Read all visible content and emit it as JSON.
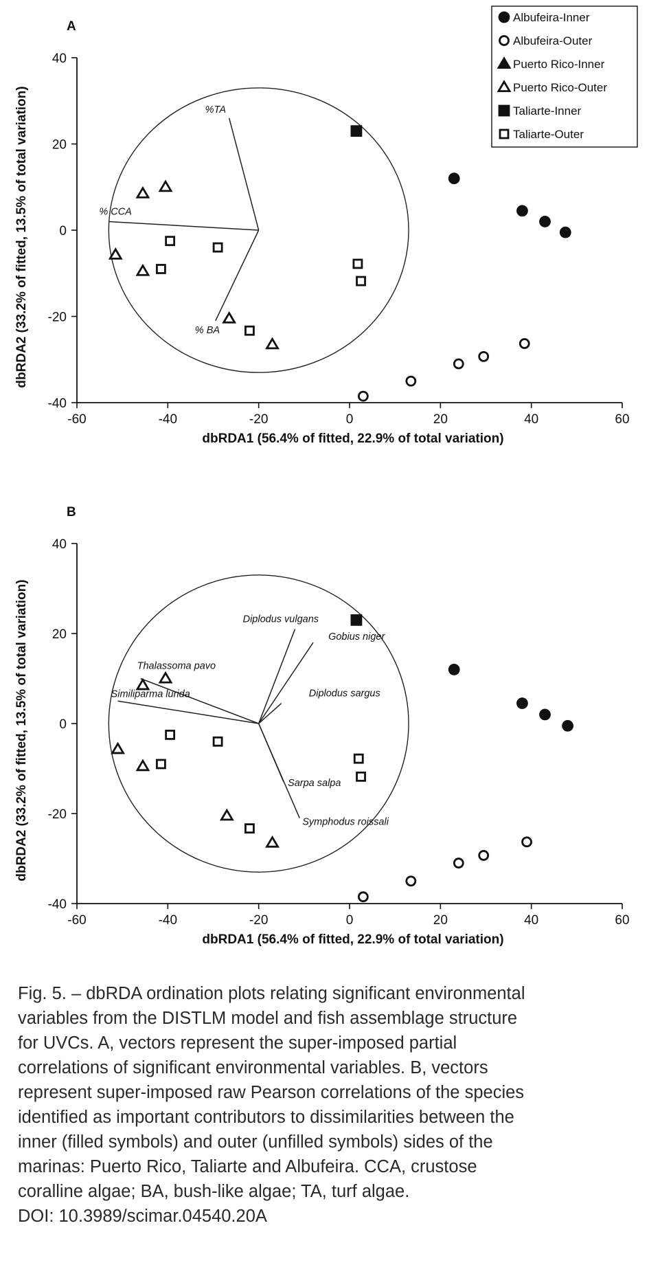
{
  "legend": [
    {
      "label": "Albufeira-Inner",
      "symbol": "circle",
      "filled": true
    },
    {
      "label": "Albufeira-Outer",
      "symbol": "circle",
      "filled": false
    },
    {
      "label": "Puerto Rico-Inner",
      "symbol": "triangle",
      "filled": true
    },
    {
      "label": "Puerto Rico-Outer",
      "symbol": "triangle",
      "filled": false
    },
    {
      "label": "Taliarte-Inner",
      "symbol": "square",
      "filled": true
    },
    {
      "label": "Taliarte-Outer",
      "symbol": "square",
      "filled": false
    }
  ],
  "chart_data": [
    {
      "type": "scatter",
      "panel_label": "A",
      "xlabel": "dbRDA1 (56.4% of fitted, 22.9% of total variation)",
      "ylabel": "dbRDA2 (33.2% of fitted, 13.5% of total variation)",
      "xlim": [
        -60,
        60
      ],
      "ylim": [
        -40,
        40
      ],
      "xticks": [
        "-60",
        "-40",
        "-20",
        "0",
        "20",
        "40",
        "60"
      ],
      "yticks": [
        "-40",
        "-20",
        "0",
        "20",
        "40"
      ],
      "circle": {
        "cx": -20,
        "cy": 0,
        "r": 33
      },
      "series": [
        {
          "name": "Albufeira-Inner",
          "symbol": "circle",
          "filled": true,
          "points": [
            [
              23,
              12
            ],
            [
              38,
              4.5
            ],
            [
              43,
              2
            ],
            [
              47.5,
              -0.5
            ]
          ]
        },
        {
          "name": "Albufeira-Outer",
          "symbol": "circle",
          "filled": false,
          "points": [
            [
              3,
              -38.5
            ],
            [
              13.5,
              -35
            ],
            [
              24,
              -31
            ],
            [
              29.5,
              -29.3
            ],
            [
              38.5,
              -26.3
            ]
          ]
        },
        {
          "name": "Puerto Rico-Outer",
          "symbol": "triangle",
          "filled": false,
          "points": [
            [
              -45.5,
              8.5
            ],
            [
              -40.5,
              10
            ],
            [
              -51.5,
              -5.7
            ],
            [
              -45.5,
              -9.5
            ],
            [
              -26.5,
              -20.5
            ],
            [
              -17,
              -26.5
            ]
          ]
        },
        {
          "name": "Taliarte-Inner",
          "symbol": "square",
          "filled": true,
          "points": [
            [
              1.5,
              23
            ]
          ]
        },
        {
          "name": "Taliarte-Outer",
          "symbol": "square",
          "filled": false,
          "points": [
            [
              -39.5,
              -2.5
            ],
            [
              -41.5,
              -9
            ],
            [
              -29,
              -4
            ],
            [
              1.8,
              -7.8
            ],
            [
              2.5,
              -11.8
            ],
            [
              -22,
              -23.3
            ]
          ]
        }
      ],
      "vectors": [
        {
          "label": "%TA",
          "x": -26.5,
          "y": 26
        },
        {
          "label": "% CCA",
          "x": -53,
          "y": 2
        },
        {
          "label": "% BA",
          "x": -29.5,
          "y": -21
        }
      ]
    },
    {
      "type": "scatter",
      "panel_label": "B",
      "xlabel": "dbRDA1 (56.4% of fitted, 22.9% of total variation)",
      "ylabel": "dbRDA2 (33.2% of fitted, 13.5% of total variation)",
      "xlim": [
        -60,
        60
      ],
      "ylim": [
        -40,
        40
      ],
      "xticks": [
        "-60",
        "-40",
        "-20",
        "0",
        "20",
        "40",
        "60"
      ],
      "yticks": [
        "-40",
        "-20",
        "0",
        "20",
        "40"
      ],
      "circle": {
        "cx": -20,
        "cy": 0,
        "r": 33
      },
      "series": [
        {
          "name": "Albufeira-Inner",
          "symbol": "circle",
          "filled": true,
          "points": [
            [
              23,
              12
            ],
            [
              38,
              4.5
            ],
            [
              43,
              2
            ],
            [
              48,
              -0.5
            ]
          ]
        },
        {
          "name": "Albufeira-Outer",
          "symbol": "circle",
          "filled": false,
          "points": [
            [
              3,
              -38.5
            ],
            [
              13.5,
              -35
            ],
            [
              24,
              -31
            ],
            [
              29.5,
              -29.3
            ],
            [
              39,
              -26.3
            ]
          ]
        },
        {
          "name": "Puerto Rico-Outer",
          "symbol": "triangle",
          "filled": false,
          "points": [
            [
              -45.5,
              8.5
            ],
            [
              -40.5,
              10
            ],
            [
              -51,
              -5.7
            ],
            [
              -45.5,
              -9.5
            ],
            [
              -27,
              -20.5
            ],
            [
              -17,
              -26.5
            ]
          ]
        },
        {
          "name": "Taliarte-Inner",
          "symbol": "square",
          "filled": true,
          "points": [
            [
              1.5,
              23
            ]
          ]
        },
        {
          "name": "Taliarte-Outer",
          "symbol": "square",
          "filled": false,
          "points": [
            [
              -39.5,
              -2.5
            ],
            [
              -41.5,
              -9
            ],
            [
              -29,
              -4
            ],
            [
              2,
              -7.8
            ],
            [
              2.5,
              -11.8
            ],
            [
              -22,
              -23.3
            ]
          ]
        }
      ],
      "vectors": [
        {
          "label": "Diplodus vulgans",
          "x": -12,
          "y": 21
        },
        {
          "label": "Gobius niger",
          "x": -8,
          "y": 18
        },
        {
          "label": "Diplodus sargus",
          "x": -15,
          "y": 4.5
        },
        {
          "label": "Thalassoma pavo",
          "x": -46,
          "y": 10
        },
        {
          "label": "Similiparma lurida",
          "x": -51,
          "y": 5
        },
        {
          "label": "Sarpa salpa",
          "x": -14.5,
          "y": -13
        },
        {
          "label": "Symphodus roissali",
          "x": -11,
          "y": -21
        }
      ]
    }
  ],
  "caption": {
    "lines": [
      "Fig. 5. – dbRDA ordination plots relating significant environmental",
      "variables from the DISTLM model and fish assemblage structure",
      "for UVCs. A, vectors represent the super-imposed partial",
      "correlations of significant environmental variables. B, vectors",
      "represent super-imposed raw Pearson correlations of the species",
      "identified as important contributors to dissimilarities between the",
      "inner (filled symbols) and outer (unfilled symbols) sides of the",
      "marinas: Puerto Rico, Taliarte and Albufeira. CCA, crustose",
      "coralline algae; BA, bush-like algae; TA, turf algae.",
      "DOI: 10.3989/scimar.04540.20A"
    ]
  }
}
